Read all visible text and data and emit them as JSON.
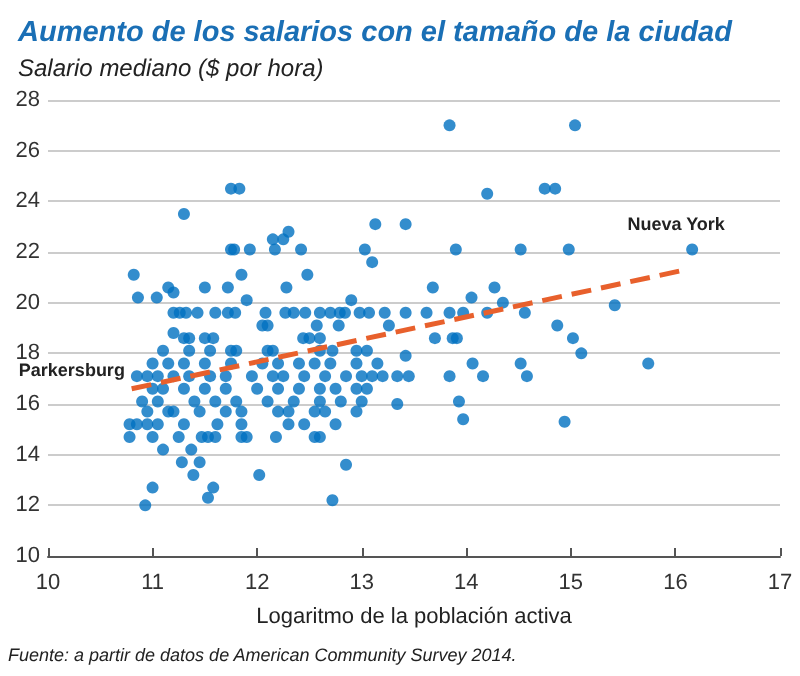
{
  "chart_data": {
    "type": "scatter",
    "title": "Aumento de los salarios con el tamaño de la ciudad",
    "subtitle": "Salario mediano ($ por hora)",
    "xlabel": "Logaritmo de la población activa",
    "annotations": [
      {
        "text": "Parkersburg",
        "x": 10.85,
        "y": 17.1
      },
      {
        "text": "Nueva York",
        "x": 16.16,
        "y": 22.1
      },
      "Fuente: a partir de datos de American Community Survey 2014."
    ],
    "series": [
      {
        "color": "#0070c0",
        "marker": "circle",
        "x": [
          10.93,
          12.72,
          11.53,
          11.0,
          11.58,
          11.39,
          12.02,
          12.85,
          11.28,
          11.45,
          11.1,
          11.37,
          10.78,
          11.0,
          11.25,
          11.47,
          11.53,
          11.6,
          11.85,
          11.9,
          12.18,
          12.55,
          12.6,
          10.78,
          10.85,
          10.95,
          11.05,
          11.3,
          11.62,
          11.85,
          12.3,
          12.45,
          12.75,
          14.94,
          13.97,
          10.95,
          11.15,
          11.2,
          11.45,
          11.7,
          11.85,
          12.2,
          12.3,
          12.55,
          12.65,
          12.95,
          13.34,
          10.9,
          11.05,
          11.4,
          11.6,
          11.8,
          12.1,
          12.35,
          12.6,
          12.8,
          13.0,
          13.93,
          11.0,
          11.1,
          11.3,
          11.5,
          11.7,
          12.0,
          12.2,
          12.4,
          12.6,
          12.75,
          12.95,
          13.05,
          10.85,
          10.95,
          11.05,
          11.2,
          11.35,
          11.55,
          11.7,
          11.95,
          12.15,
          12.25,
          12.45,
          12.65,
          12.85,
          13.0,
          13.1,
          13.2,
          13.34,
          13.45,
          13.84,
          14.16,
          14.58,
          11.0,
          11.15,
          11.3,
          11.5,
          11.75,
          12.05,
          12.2,
          12.4,
          12.55,
          12.7,
          12.95,
          13.15,
          14.06,
          14.52,
          15.74,
          13.42,
          15.1,
          11.1,
          11.35,
          11.55,
          11.75,
          11.8,
          12.1,
          12.15,
          12.6,
          12.72,
          12.95,
          13.05,
          11.3,
          11.35,
          11.5,
          11.58,
          12.44,
          12.5,
          12.6,
          13.7,
          13.87,
          13.91,
          15.02,
          11.2,
          12.05,
          12.1,
          12.57,
          12.78,
          13.26,
          14.87,
          11.2,
          11.26,
          11.32,
          11.43,
          11.6,
          11.72,
          11.79,
          12.08,
          12.27,
          12.35,
          12.46,
          12.6,
          12.7,
          12.79,
          12.84,
          12.98,
          13.07,
          13.22,
          13.42,
          13.62,
          13.84,
          13.97,
          14.2,
          14.56,
          15.42,
          14.35,
          11.9,
          12.9,
          10.86,
          11.04,
          14.05,
          11.2,
          11.15,
          11.5,
          11.72,
          12.28,
          13.68,
          14.27,
          10.82,
          11.85,
          12.48,
          13.1,
          11.75,
          11.78,
          11.93,
          12.17,
          12.42,
          13.03,
          13.9,
          14.52,
          14.98,
          16.16,
          12.15,
          12.25,
          12.3,
          13.13,
          13.42,
          11.3,
          14.2,
          11.75,
          11.83,
          14.75,
          14.85,
          13.84,
          15.04
        ],
        "values": [
          12.0,
          12.2,
          12.3,
          12.7,
          12.7,
          13.2,
          13.2,
          13.6,
          13.7,
          13.7,
          14.2,
          14.2,
          14.7,
          14.7,
          14.7,
          14.7,
          14.7,
          14.7,
          14.7,
          14.7,
          14.7,
          14.7,
          14.7,
          15.2,
          15.2,
          15.2,
          15.2,
          15.2,
          15.2,
          15.2,
          15.2,
          15.2,
          15.2,
          15.3,
          15.4,
          15.7,
          15.7,
          15.7,
          15.7,
          15.7,
          15.7,
          15.7,
          15.7,
          15.7,
          15.7,
          15.7,
          16.0,
          16.1,
          16.1,
          16.1,
          16.1,
          16.1,
          16.1,
          16.1,
          16.1,
          16.1,
          16.1,
          16.1,
          16.6,
          16.6,
          16.6,
          16.6,
          16.6,
          16.6,
          16.6,
          16.6,
          16.6,
          16.6,
          16.6,
          16.6,
          17.1,
          17.1,
          17.1,
          17.1,
          17.1,
          17.1,
          17.1,
          17.1,
          17.1,
          17.1,
          17.1,
          17.1,
          17.1,
          17.1,
          17.1,
          17.1,
          17.1,
          17.1,
          17.1,
          17.1,
          17.1,
          17.6,
          17.6,
          17.6,
          17.6,
          17.6,
          17.6,
          17.6,
          17.6,
          17.6,
          17.6,
          17.6,
          17.6,
          17.6,
          17.6,
          17.6,
          17.9,
          18.0,
          18.1,
          18.1,
          18.1,
          18.1,
          18.1,
          18.1,
          18.1,
          18.1,
          18.1,
          18.1,
          18.1,
          18.6,
          18.6,
          18.6,
          18.6,
          18.6,
          18.6,
          18.6,
          18.6,
          18.6,
          18.6,
          18.6,
          18.8,
          19.1,
          19.1,
          19.1,
          19.1,
          19.1,
          19.1,
          19.6,
          19.6,
          19.6,
          19.6,
          19.6,
          19.6,
          19.6,
          19.6,
          19.6,
          19.6,
          19.6,
          19.6,
          19.6,
          19.6,
          19.6,
          19.6,
          19.6,
          19.6,
          19.6,
          19.6,
          19.6,
          19.6,
          19.6,
          19.6,
          19.9,
          20.0,
          20.1,
          20.1,
          20.2,
          20.2,
          20.2,
          20.4,
          20.6,
          20.6,
          20.6,
          20.6,
          20.6,
          20.6,
          21.1,
          21.1,
          21.1,
          21.6,
          22.1,
          22.1,
          22.1,
          22.1,
          22.1,
          22.1,
          22.1,
          22.1,
          22.1,
          22.1,
          22.5,
          22.5,
          22.8,
          23.1,
          23.1,
          23.5,
          24.3,
          24.5,
          24.5,
          24.5,
          24.5,
          27.0,
          27.0
        ]
      },
      {
        "type": "line",
        "color": "#e8602c",
        "marker": "none",
        "line_style": "dashed",
        "x": [
          10.8,
          16.1
        ],
        "values": [
          16.6,
          21.3
        ]
      }
    ],
    "xlim": [
      10,
      17
    ],
    "xticks": [
      10,
      11,
      12,
      13,
      14,
      15,
      16,
      17
    ],
    "ylim": [
      10,
      28
    ],
    "yticks": [
      10,
      12,
      14,
      16,
      18,
      20,
      22,
      24,
      26,
      28
    ],
    "grid": "y"
  }
}
